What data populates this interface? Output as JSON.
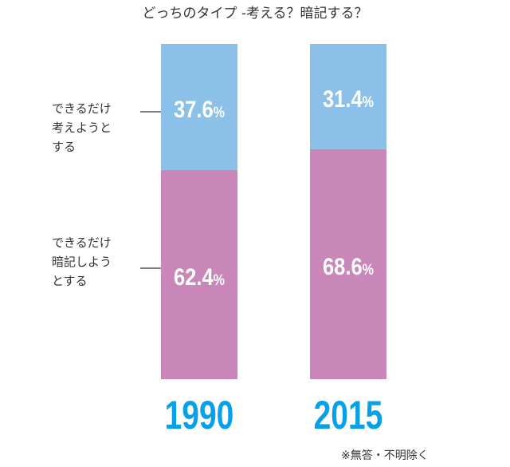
{
  "chart_data": {
    "type": "bar",
    "stacked": true,
    "title": "どっちのタイプ -考える？暗記する？",
    "categories": [
      "1990",
      "2015"
    ],
    "series": [
      {
        "name": "できるだけ考えようとする",
        "values": [
          37.6,
          31.4
        ],
        "color": "#8bc0e8",
        "labels": [
          "37.6%",
          "31.4%"
        ]
      },
      {
        "name": "できるだけ暗記しようとする",
        "values": [
          62.4,
          68.6
        ],
        "color": "#c887b8",
        "labels": [
          "62.4%",
          "68.6%"
        ]
      }
    ],
    "ylim": [
      0,
      100
    ],
    "year_color": "#0aa0e8",
    "legend": [
      "できるだけ\n考えようと\nする",
      "できるだけ\n暗記しよう\nとする"
    ],
    "note": "※無答・不明除く"
  }
}
